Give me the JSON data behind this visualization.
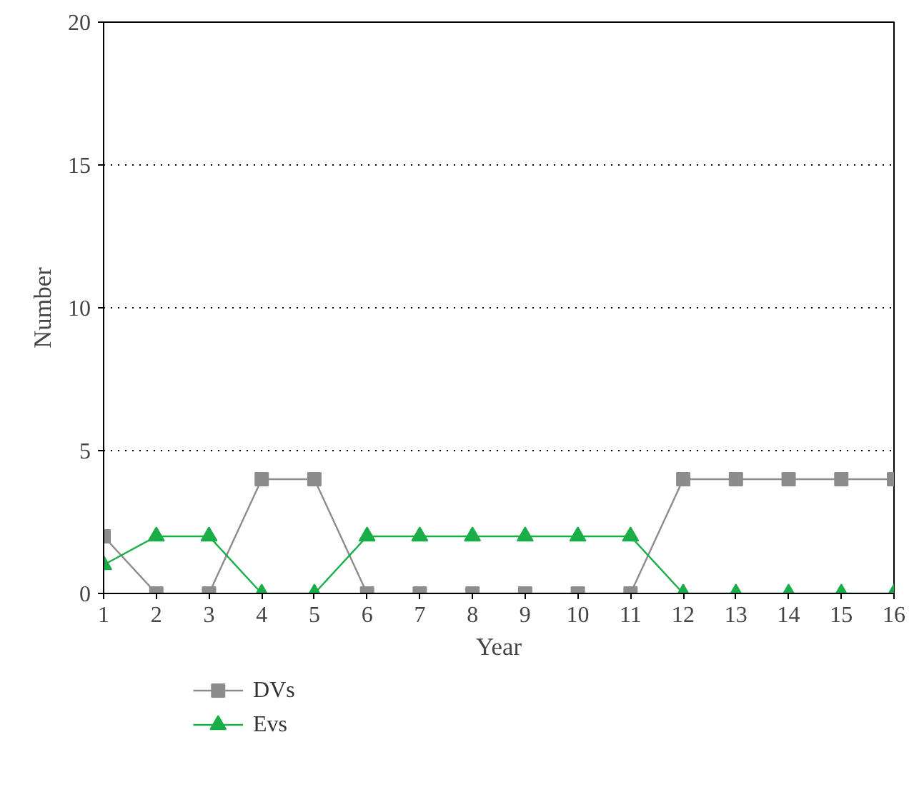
{
  "chart_data": {
    "type": "line",
    "xlabel": "Year",
    "ylabel": "Number",
    "x": [
      1,
      2,
      3,
      4,
      5,
      6,
      7,
      8,
      9,
      10,
      11,
      12,
      13,
      14,
      15,
      16
    ],
    "xlim": [
      1,
      16
    ],
    "xticks": [
      1,
      2,
      3,
      4,
      5,
      6,
      7,
      8,
      9,
      10,
      11,
      12,
      13,
      14,
      15,
      16
    ],
    "ylim": [
      0,
      20
    ],
    "yticks": [
      0,
      5,
      10,
      15,
      20
    ],
    "grid": "y",
    "legend": "bottom left",
    "line_style": "solid",
    "series": [
      {
        "name": "DVs",
        "color": "#8c8c8c",
        "marker": "square",
        "values": [
          2,
          0,
          0,
          4,
          4,
          0,
          0,
          0,
          0,
          0,
          0,
          4,
          4,
          4,
          4,
          4
        ]
      },
      {
        "name": "Evs",
        "color": "#1aae48",
        "marker": "triangle",
        "values": [
          1,
          2,
          2,
          0,
          0,
          2,
          2,
          2,
          2,
          2,
          2,
          0,
          0,
          0,
          0,
          0
        ]
      }
    ]
  }
}
